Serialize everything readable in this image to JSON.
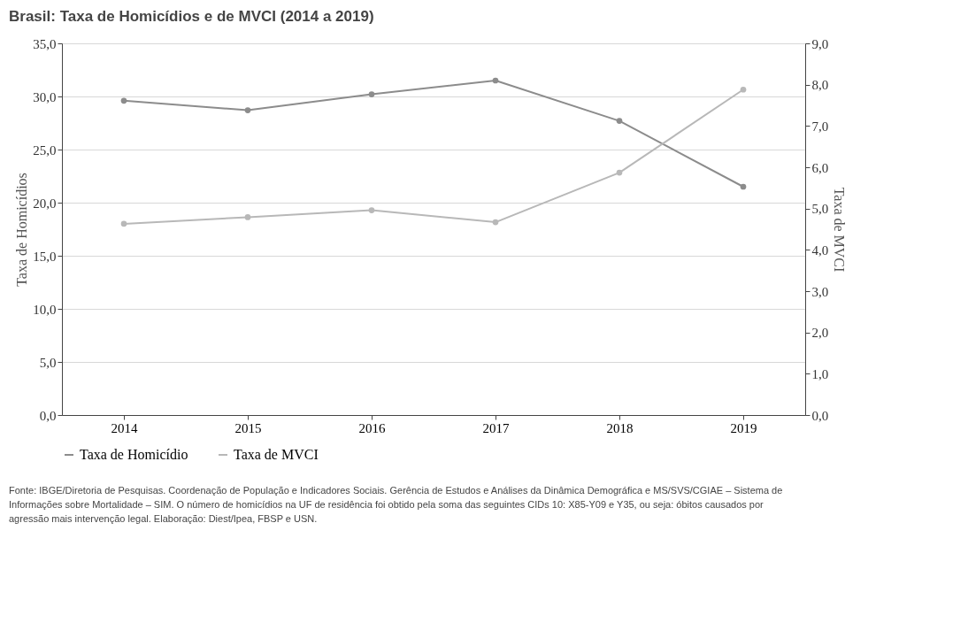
{
  "chart_data": {
    "type": "line",
    "title": "Brasil: Taxa de Homicídios e de MVCI (2014 a 2019)",
    "categories": [
      "2014",
      "2015",
      "2016",
      "2017",
      "2018",
      "2019"
    ],
    "series": [
      {
        "name": "Taxa de Homicídio",
        "color": "#8c8c8c",
        "values": [
          29.6,
          28.7,
          30.2,
          31.5,
          27.7,
          21.5
        ]
      },
      {
        "name": "Taxa de MVCI",
        "color": "#b8b8b8",
        "axis": "y2",
        "values": [
          4.63,
          4.79,
          4.96,
          4.67,
          5.87,
          7.88
        ]
      }
    ],
    "ylabel": "Taxa de Homicídios",
    "y2label": "Taxa de MVCI",
    "ylim": [
      0,
      35
    ],
    "yticks": [
      {
        "value": 0,
        "label": "0,0"
      },
      {
        "value": 5,
        "label": "5,0"
      },
      {
        "value": 10,
        "label": "10,0"
      },
      {
        "value": 15,
        "label": "15,0"
      },
      {
        "value": 20,
        "label": "20,0"
      },
      {
        "value": 25,
        "label": "25,0"
      },
      {
        "value": 30,
        "label": "30,0"
      },
      {
        "value": 35,
        "label": "35,0"
      }
    ],
    "y2lim": [
      0,
      9
    ],
    "y2ticks": [
      {
        "value": 0,
        "label": "0,0"
      },
      {
        "value": 1,
        "label": "1,0"
      },
      {
        "value": 2,
        "label": "2,0"
      },
      {
        "value": 3,
        "label": "3,0"
      },
      {
        "value": 4,
        "label": "4,0"
      },
      {
        "value": 5,
        "label": "5,0"
      },
      {
        "value": 6,
        "label": "6,0"
      },
      {
        "value": 7,
        "label": "7,0"
      },
      {
        "value": 8,
        "label": "8,0"
      },
      {
        "value": 9,
        "label": "9,0"
      }
    ],
    "grid": "y",
    "legend": "bottom",
    "marker": "circle",
    "line_style": "solid",
    "annotations": [
      "Fonte: IBGE/Diretoria de Pesquisas. Coordenação de População e Indicadores Sociais. Gerência de Estudos e Análises da Dinâmica Demográfica e MS/SVS/CGIAE – Sistema de Informações sobre Mortalidade – SIM. O número de homicídios na UF de residência foi obtido pela soma das seguintes CIDs 10: X85-Y09 e Y35, ou seja: óbitos causados por agressão mais intervenção legal. Elaboração: Diest/Ipea, FBSP e USN."
    ]
  }
}
